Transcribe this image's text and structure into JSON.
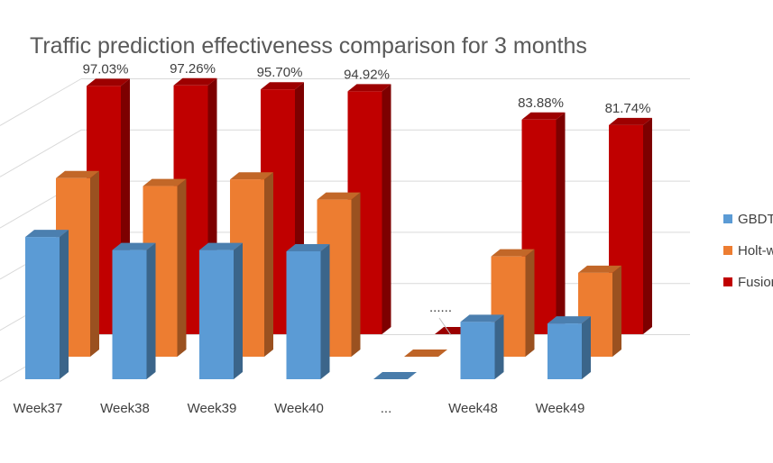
{
  "chart_data": {
    "type": "bar",
    "title": "Traffic prediction effectiveness comparison for 3 months",
    "categories": [
      "Week37",
      "Week38",
      "Week39",
      "Week40",
      "...",
      "Week48",
      "Week49"
    ],
    "gap_marker": "......",
    "series": [
      {
        "name": "GBDT",
        "color": "#5B9BD5",
        "values": [
          0.556,
          0.505,
          0.505,
          0.5,
          0.0,
          0.224,
          0.218
        ]
      },
      {
        "name": "Holt-winters",
        "color": "#ED7D31",
        "values": [
          0.698,
          0.667,
          0.693,
          0.614,
          0.0,
          0.392,
          0.328
        ]
      },
      {
        "name": "Fusion model",
        "color": "#C00000",
        "values": [
          0.9703,
          0.9726,
          0.957,
          0.9492,
          0.0,
          0.8388,
          0.8174
        ],
        "data_labels": [
          "97.03%",
          "97.26%",
          "95.70%",
          "94.92%",
          "",
          "83.88%",
          "81.74%"
        ]
      }
    ],
    "ylim": [
      0,
      1
    ],
    "grid": true,
    "legend_position": "right",
    "three_d": true
  }
}
